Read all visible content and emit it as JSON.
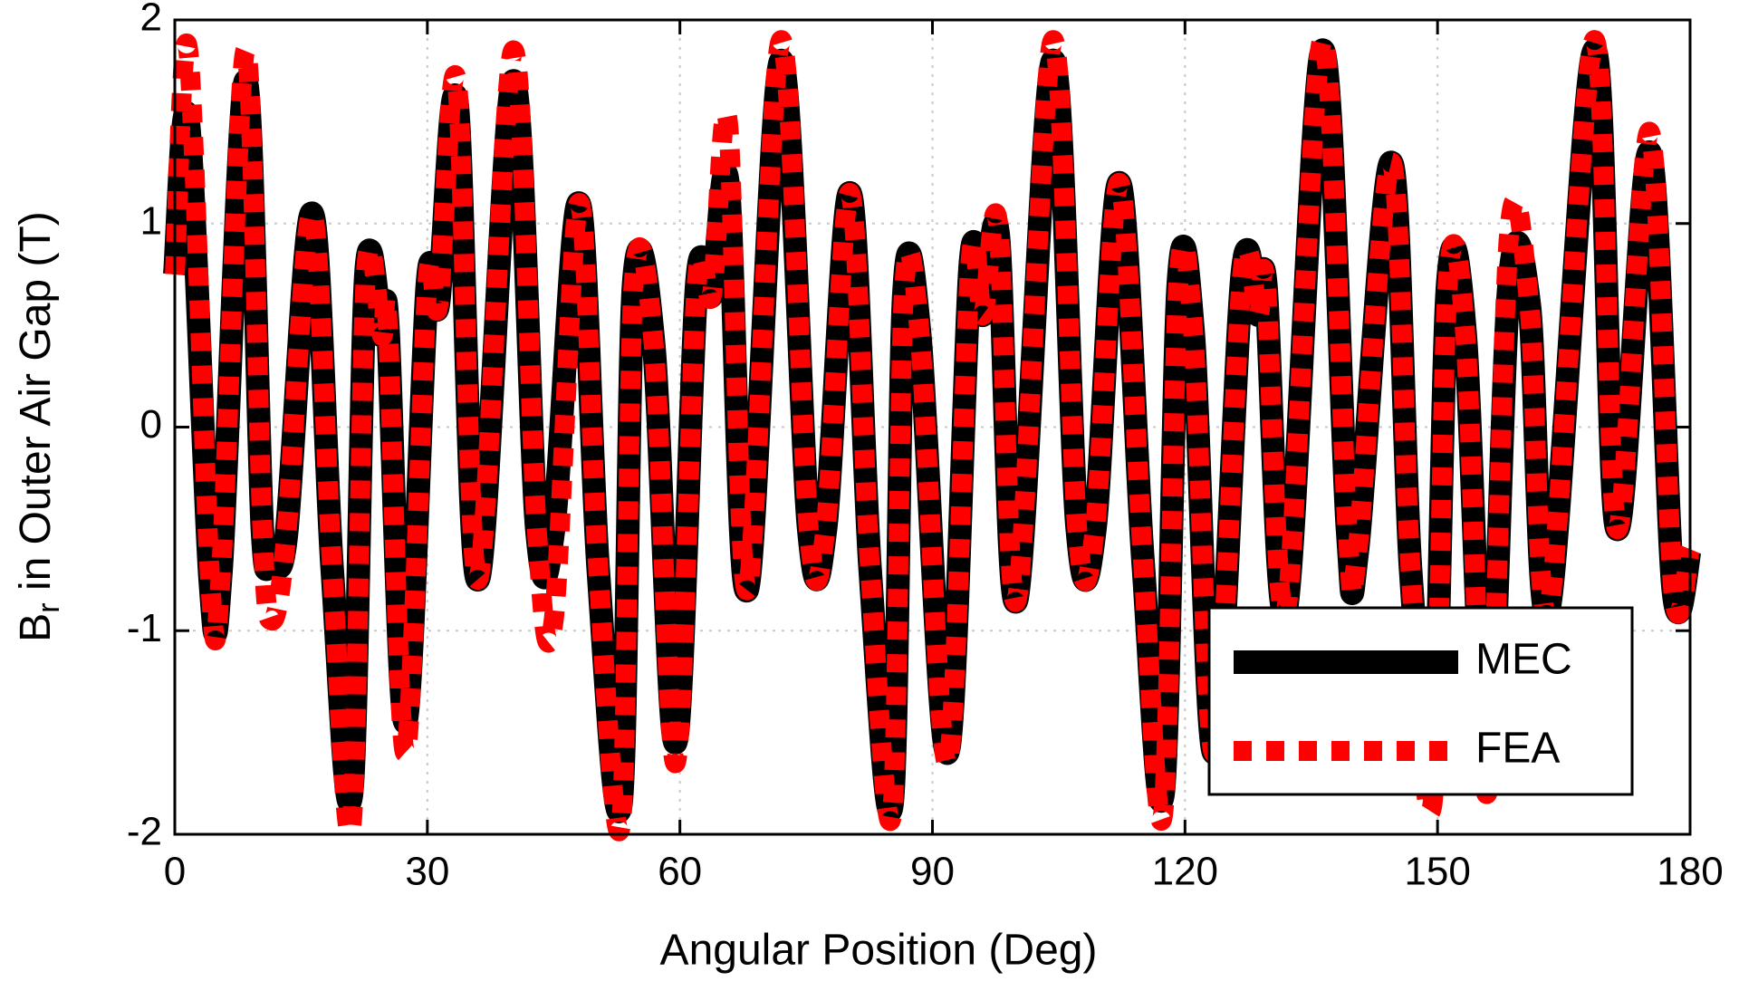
{
  "chart_data": {
    "type": "line",
    "xlabel": "Angular Position (Deg)",
    "ylabel_parts": [
      "B",
      "r",
      " in Outer Air Gap (T)"
    ],
    "x": [
      0,
      1.6,
      4.2,
      5.5,
      8.4,
      10.4,
      11.5,
      13.2,
      16.3,
      18.7,
      21,
      22.7,
      24.6,
      25.3,
      27.4,
      30,
      31.3,
      33.5,
      36,
      40.2,
      43,
      45,
      48,
      50.3,
      53,
      54.5,
      56.9,
      59.5,
      62,
      63.8,
      65.7,
      68,
      72,
      75.3,
      77.3,
      80.2,
      82.6,
      85.2,
      86.6,
      88.5,
      91.8,
      94.5,
      96,
      97.8,
      100,
      104.3,
      107.2,
      109.3,
      112.2,
      115,
      117.4,
      119.2,
      121,
      123.5,
      126.8,
      128.7,
      129.6,
      132,
      136.3,
      139.3,
      140.5,
      144.5,
      146.8,
      149.4,
      151.2,
      153.3,
      155.9,
      158.5,
      160.9,
      163.2,
      168.6,
      171.3,
      175.2,
      178,
      180
    ],
    "series": [
      {
        "name": "MEC",
        "color": "#000000",
        "style": "solid",
        "values": [
          0.75,
          1.5,
          -0.75,
          -0.7,
          1.7,
          -0.5,
          -0.6,
          -0.55,
          1.05,
          -0.7,
          -1.8,
          0.75,
          0.45,
          0.5,
          -1.45,
          0.7,
          0.6,
          1.6,
          -0.75,
          1.7,
          -0.5,
          -0.5,
          1.1,
          -0.7,
          -1.85,
          0.7,
          0.4,
          -1.55,
          0.7,
          0.65,
          1.2,
          -0.8,
          1.8,
          -0.5,
          -0.5,
          1.15,
          -0.7,
          -1.85,
          0.65,
          0.45,
          -1.6,
          0.8,
          0.55,
          0.95,
          -0.85,
          1.8,
          -0.5,
          -0.5,
          1.2,
          -0.65,
          -1.8,
          0.7,
          0.45,
          -1.6,
          0.75,
          0.55,
          0.7,
          -0.9,
          1.85,
          -0.5,
          -0.6,
          1.3,
          -0.7,
          -1.7,
          0.7,
          0.45,
          -1.7,
          0.7,
          0.6,
          -0.9,
          1.85,
          -0.5,
          1.35,
          -0.8,
          -0.6
        ]
      },
      {
        "name": "FEA",
        "color": "#ff0000",
        "style": "dashed",
        "values": [
          0.75,
          1.85,
          -0.75,
          -0.7,
          1.85,
          -0.5,
          -0.95,
          -0.55,
          1.05,
          -0.7,
          -1.95,
          0.75,
          0.45,
          0.5,
          -1.6,
          0.7,
          0.6,
          1.7,
          -0.75,
          1.85,
          -0.5,
          -0.95,
          1.1,
          -0.7,
          -1.95,
          0.7,
          0.4,
          -1.65,
          0.7,
          0.65,
          1.5,
          -0.8,
          1.9,
          -0.5,
          -0.5,
          1.15,
          -0.7,
          -1.9,
          0.65,
          0.45,
          -1.65,
          0.8,
          0.55,
          1.0,
          -0.85,
          1.9,
          -0.5,
          -0.5,
          1.2,
          -0.65,
          -1.9,
          0.7,
          0.45,
          -1.6,
          0.75,
          0.55,
          0.7,
          -0.9,
          1.9,
          -0.5,
          -0.6,
          1.3,
          -0.7,
          -1.85,
          0.7,
          0.45,
          -1.8,
          0.95,
          0.6,
          -0.9,
          1.9,
          -0.5,
          1.45,
          -0.8,
          -0.6
        ]
      }
    ],
    "xlim": [
      0,
      180
    ],
    "xticks": [
      0,
      30,
      60,
      90,
      120,
      150,
      180
    ],
    "ylim": [
      -2,
      2
    ],
    "yticks": [
      -2,
      -1,
      0,
      1,
      2
    ],
    "grid": true,
    "legend": "lower right"
  }
}
